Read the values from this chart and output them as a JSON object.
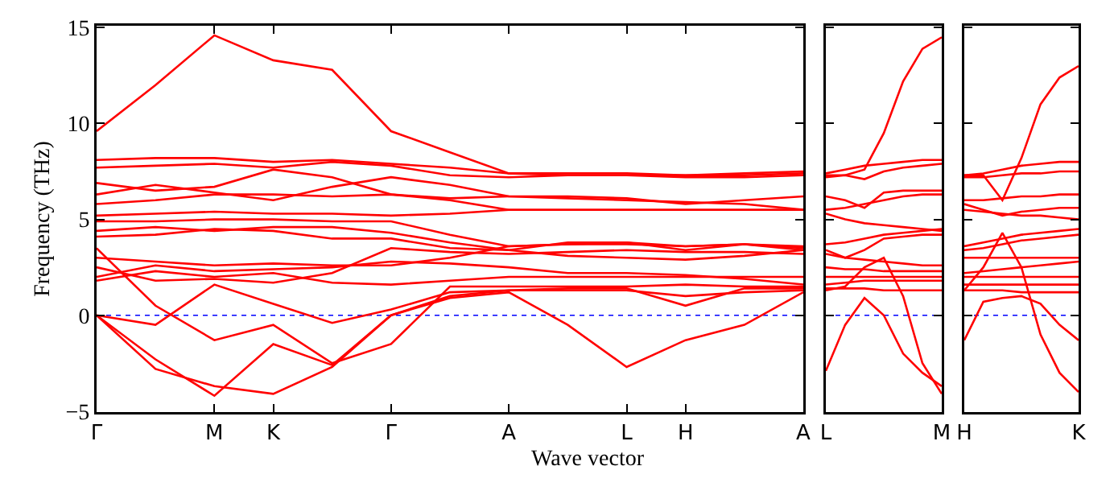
{
  "chart_data": [
    {
      "type": "line",
      "ylabel": "Frequency (THz)",
      "xlabel": "Wave vector",
      "categories": [
        "Γ",
        null,
        "M",
        "K",
        null,
        "Γ",
        null,
        "A",
        null,
        "L",
        "H",
        null,
        "A"
      ],
      "ylim": [
        -5.05,
        15.1
      ],
      "yticks": [
        {
          "value": -5,
          "label": "−5"
        },
        0,
        5,
        10,
        15
      ],
      "ref_lines": [
        {
          "axis": "y",
          "value": 0,
          "color": "#0000ff",
          "line_style": "dotted"
        }
      ],
      "series": [
        {
          "color": "#ff0000",
          "values": [
            9.6,
            12.0,
            14.6,
            13.3,
            12.8,
            9.6,
            8.5,
            7.4,
            7.4,
            7.4,
            7.3,
            7.4,
            7.5
          ]
        },
        {
          "color": "#ff0000",
          "values": [
            8.1,
            8.2,
            8.2,
            8.0,
            8.1,
            7.9,
            7.7,
            7.4,
            7.3,
            7.3,
            7.3,
            7.3,
            7.4
          ]
        },
        {
          "color": "#ff0000",
          "values": [
            7.7,
            7.8,
            7.9,
            7.7,
            8.0,
            7.8,
            7.3,
            7.2,
            7.3,
            7.3,
            7.2,
            7.2,
            7.3
          ]
        },
        {
          "color": "#ff0000",
          "values": [
            6.9,
            6.5,
            6.7,
            7.6,
            7.2,
            6.3,
            6.1,
            6.2,
            6.2,
            6.1,
            5.8,
            6.0,
            6.2
          ]
        },
        {
          "color": "#ff0000",
          "values": [
            6.3,
            6.8,
            6.4,
            6.0,
            6.7,
            7.2,
            6.8,
            6.2,
            6.1,
            6.0,
            5.9,
            5.8,
            5.5
          ]
        },
        {
          "color": "#ff0000",
          "values": [
            5.8,
            6.0,
            6.3,
            6.3,
            6.2,
            6.3,
            6.0,
            5.5,
            5.5,
            5.5,
            5.5,
            5.5,
            5.5
          ]
        },
        {
          "color": "#ff0000",
          "values": [
            5.2,
            5.3,
            5.4,
            5.3,
            5.3,
            5.2,
            5.3,
            5.5,
            5.5,
            5.5,
            5.5,
            5.5,
            5.5
          ]
        },
        {
          "color": "#ff0000",
          "values": [
            4.9,
            4.9,
            5.0,
            5.0,
            4.9,
            4.9,
            4.2,
            3.6,
            3.7,
            3.7,
            3.6,
            3.7,
            3.5
          ]
        },
        {
          "color": "#ff0000",
          "values": [
            4.4,
            4.6,
            4.4,
            4.6,
            4.6,
            4.3,
            3.8,
            3.4,
            3.8,
            3.8,
            3.4,
            3.7,
            3.4
          ]
        },
        {
          "color": "#ff0000",
          "values": [
            4.1,
            4.2,
            4.5,
            4.4,
            4.0,
            4.0,
            3.5,
            3.4,
            3.1,
            3.0,
            2.9,
            3.1,
            3.4
          ]
        },
        {
          "color": "#ff0000",
          "values": [
            3.0,
            2.8,
            2.6,
            2.7,
            2.6,
            2.6,
            3.0,
            3.6,
            3.7,
            3.8,
            3.6,
            3.7,
            3.6
          ]
        },
        {
          "color": "#ff0000",
          "values": [
            2.5,
            1.8,
            1.9,
            1.7,
            2.2,
            3.5,
            3.3,
            3.2,
            3.3,
            3.4,
            3.3,
            3.3,
            3.2
          ]
        },
        {
          "color": "#ff0000",
          "values": [
            2.0,
            2.6,
            2.3,
            2.4,
            2.5,
            2.8,
            2.7,
            2.5,
            2.2,
            2.2,
            2.1,
            1.9,
            1.6
          ]
        },
        {
          "color": "#ff0000",
          "values": [
            1.8,
            2.3,
            2.0,
            2.2,
            1.7,
            1.6,
            1.8,
            2.0,
            2.0,
            2.0,
            2.0,
            2.0,
            2.0
          ]
        },
        {
          "color": "#ff0000",
          "values": [
            3.5,
            0.5,
            -1.3,
            -0.5,
            -2.5,
            -1.5,
            1.5,
            1.5,
            1.5,
            1.5,
            1.6,
            1.5,
            1.5
          ]
        },
        {
          "color": "#ff0000",
          "values": [
            0,
            -0.5,
            1.6,
            0.6,
            -0.4,
            0.3,
            1.2,
            1.3,
            1.4,
            1.4,
            0.5,
            1.4,
            1.4
          ]
        },
        {
          "color": "#ff0000",
          "values": [
            0,
            -2.3,
            -4.2,
            -1.5,
            -2.6,
            0,
            1.0,
            1.3,
            1.3,
            1.3,
            1.0,
            1.2,
            1.3
          ]
        },
        {
          "color": "#ff0000",
          "values": [
            0,
            -2.8,
            -3.7,
            -4.1,
            -2.7,
            0,
            0.9,
            1.2,
            -0.5,
            -2.7,
            -1.3,
            -0.5,
            1.2
          ]
        }
      ]
    },
    {
      "type": "line",
      "tick_labels": "x",
      "categories": [
        "L",
        null,
        null,
        null,
        null,
        null,
        "M"
      ],
      "ylim": [
        -5.05,
        15.1
      ],
      "yticks": [
        -5,
        0,
        5,
        10,
        15
      ],
      "ref_lines": [
        {
          "axis": "y",
          "value": 0,
          "color": "#0000ff",
          "line_style": "dotted"
        }
      ],
      "series": [
        {
          "color": "#ff0000",
          "values": [
            7.3,
            7.3,
            7.6,
            9.5,
            12.2,
            13.9,
            14.5
          ]
        },
        {
          "color": "#ff0000",
          "values": [
            7.4,
            7.6,
            7.8,
            7.9,
            8.0,
            8.1,
            8.1
          ]
        },
        {
          "color": "#ff0000",
          "values": [
            7.2,
            7.3,
            7.1,
            7.5,
            7.7,
            7.8,
            7.9
          ]
        },
        {
          "color": "#ff0000",
          "values": [
            6.2,
            6.0,
            5.6,
            6.4,
            6.5,
            6.5,
            6.5
          ]
        },
        {
          "color": "#ff0000",
          "values": [
            5.5,
            5.6,
            5.8,
            6.0,
            6.2,
            6.3,
            6.3
          ]
        },
        {
          "color": "#ff0000",
          "values": [
            5.3,
            5.0,
            4.8,
            4.7,
            4.6,
            4.5,
            4.4
          ]
        },
        {
          "color": "#ff0000",
          "values": [
            3.7,
            3.8,
            4.0,
            4.2,
            4.3,
            4.4,
            4.5
          ]
        },
        {
          "color": "#ff0000",
          "values": [
            3.4,
            3.0,
            3.4,
            4.0,
            4.1,
            4.2,
            4.2
          ]
        },
        {
          "color": "#ff0000",
          "values": [
            3.2,
            3.0,
            2.9,
            2.8,
            2.7,
            2.6,
            2.6
          ]
        },
        {
          "color": "#ff0000",
          "values": [
            2.5,
            2.4,
            2.4,
            2.3,
            2.3,
            2.3,
            2.3
          ]
        },
        {
          "color": "#ff0000",
          "values": [
            2.0,
            2.0,
            2.0,
            2.0,
            2.0,
            2.0,
            2.0
          ]
        },
        {
          "color": "#ff0000",
          "values": [
            1.6,
            1.7,
            1.8,
            1.8,
            1.8,
            1.8,
            1.8
          ]
        },
        {
          "color": "#ff0000",
          "values": [
            1.4,
            1.4,
            1.4,
            1.3,
            1.3,
            1.3,
            1.3
          ]
        },
        {
          "color": "#ff0000",
          "values": [
            1.3,
            1.5,
            2.5,
            3.0,
            1.0,
            -2.5,
            -4.1
          ]
        },
        {
          "color": "#ff0000",
          "values": [
            -2.9,
            -0.5,
            0.9,
            0.0,
            -2.0,
            -3.0,
            -3.7
          ]
        }
      ]
    },
    {
      "type": "line",
      "tick_labels": "x",
      "categories": [
        "H",
        null,
        null,
        null,
        null,
        null,
        "K"
      ],
      "ylim": [
        -5.05,
        15.1
      ],
      "yticks": [
        -5,
        0,
        5,
        10,
        15
      ],
      "ref_lines": [
        {
          "axis": "y",
          "value": 0,
          "color": "#0000ff",
          "line_style": "dotted"
        }
      ],
      "series": [
        {
          "color": "#ff0000",
          "values": [
            7.3,
            7.3,
            6.0,
            8.2,
            11.0,
            12.4,
            13.0
          ]
        },
        {
          "color": "#ff0000",
          "values": [
            7.3,
            7.4,
            7.6,
            7.8,
            7.9,
            8.0,
            8.0
          ]
        },
        {
          "color": "#ff0000",
          "values": [
            7.2,
            7.2,
            7.3,
            7.4,
            7.4,
            7.5,
            7.5
          ]
        },
        {
          "color": "#ff0000",
          "values": [
            6.0,
            6.0,
            6.1,
            6.2,
            6.2,
            6.3,
            6.3
          ]
        },
        {
          "color": "#ff0000",
          "values": [
            5.8,
            5.5,
            5.2,
            5.4,
            5.5,
            5.6,
            5.6
          ]
        },
        {
          "color": "#ff0000",
          "values": [
            5.5,
            5.4,
            5.3,
            5.2,
            5.2,
            5.1,
            5.0
          ]
        },
        {
          "color": "#ff0000",
          "values": [
            3.6,
            3.8,
            4.0,
            4.2,
            4.3,
            4.4,
            4.5
          ]
        },
        {
          "color": "#ff0000",
          "values": [
            3.4,
            3.5,
            3.7,
            3.9,
            4.0,
            4.1,
            4.2
          ]
        },
        {
          "color": "#ff0000",
          "values": [
            3.0,
            3.0,
            3.0,
            3.0,
            3.0,
            3.0,
            3.0
          ]
        },
        {
          "color": "#ff0000",
          "values": [
            2.2,
            2.3,
            2.4,
            2.5,
            2.6,
            2.7,
            2.8
          ]
        },
        {
          "color": "#ff0000",
          "values": [
            2.0,
            2.0,
            2.0,
            2.0,
            2.0,
            2.0,
            2.0
          ]
        },
        {
          "color": "#ff0000",
          "values": [
            1.6,
            1.6,
            1.6,
            1.6,
            1.6,
            1.6,
            1.6
          ]
        },
        {
          "color": "#ff0000",
          "values": [
            1.3,
            1.3,
            1.3,
            1.2,
            1.2,
            1.2,
            1.2
          ]
        },
        {
          "color": "#ff0000",
          "values": [
            1.3,
            2.5,
            4.3,
            2.5,
            -1.0,
            -3.0,
            -4.0
          ]
        },
        {
          "color": "#ff0000",
          "values": [
            -1.3,
            0.7,
            0.9,
            1.0,
            0.6,
            -0.5,
            -1.3
          ]
        }
      ]
    }
  ]
}
